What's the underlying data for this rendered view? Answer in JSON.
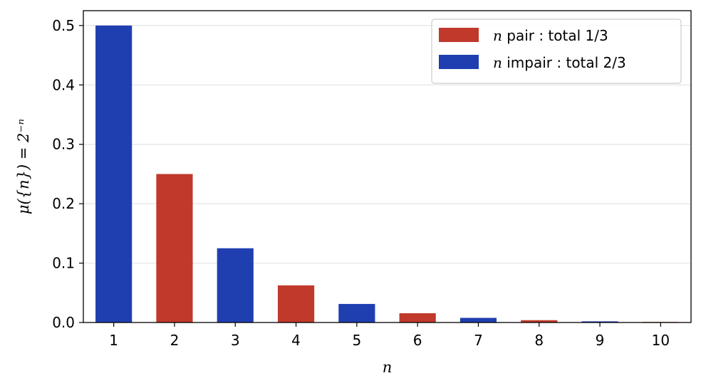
{
  "chart_data": {
    "type": "bar",
    "categories": [
      "1",
      "2",
      "3",
      "4",
      "5",
      "6",
      "7",
      "8",
      "9",
      "10"
    ],
    "x": [
      1,
      2,
      3,
      4,
      5,
      6,
      7,
      8,
      9,
      10
    ],
    "values": [
      0.5,
      0.25,
      0.125,
      0.0625,
      0.03125,
      0.015625,
      0.0078125,
      0.00390625,
      0.001953125,
      0.0009765625
    ],
    "parity": [
      "impair",
      "pair",
      "impair",
      "pair",
      "impair",
      "pair",
      "impair",
      "pair",
      "impair",
      "pair"
    ],
    "series": [
      {
        "key": "pair",
        "var": "n",
        "name": " pair : total 1/3",
        "color": "#c0392b"
      },
      {
        "key": "impair",
        "var": "n",
        "name": " impair : total 2/3",
        "color": "#1f3fb0"
      }
    ],
    "xlabel": "n",
    "ylabel": "μ({n}) = 2⁻ⁿ",
    "ylim": [
      0,
      0.525
    ],
    "yticks": [
      0.0,
      0.1,
      0.2,
      0.3,
      0.4,
      0.5
    ],
    "ytick_labels": [
      "0.0",
      "0.1",
      "0.2",
      "0.3",
      "0.4",
      "0.5"
    ],
    "grid": "horizontal",
    "legend": "top-right"
  }
}
